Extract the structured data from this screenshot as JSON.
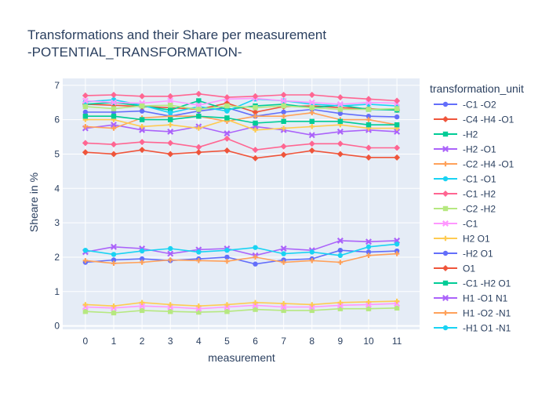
{
  "chart_data": {
    "type": "line",
    "title_line1": "Transformations and their Share per measurement",
    "title_line2": "-POTENTIAL_TRANSFORMATION-",
    "xlabel": "measurement",
    "ylabel": "Sheare in %",
    "legend_title": "transformation_unit",
    "legend_placement": "right",
    "grid": true,
    "plot_bg": "#E5ECF6",
    "xlim": [
      -0.8,
      11.8
    ],
    "ylim": [
      -0.1,
      7.2
    ],
    "x": [
      0,
      1,
      2,
      3,
      4,
      5,
      6,
      7,
      8,
      9,
      10,
      11
    ],
    "x_ticks": [
      "0",
      "1",
      "2",
      "3",
      "4",
      "5",
      "6",
      "7",
      "8",
      "9",
      "10",
      "11"
    ],
    "y_ticks": [
      "0",
      "1",
      "2",
      "3",
      "4",
      "5",
      "6",
      "7"
    ],
    "series": [
      {
        "name": "-C1 -O2",
        "color": "#636EFA",
        "marker": "circle",
        "values": [
          6.22,
          6.22,
          6.25,
          6.1,
          6.25,
          6.35,
          6.1,
          6.22,
          6.3,
          6.18,
          6.1,
          6.08
        ]
      },
      {
        "name": "-C4 -H4 -O1",
        "color": "#EF553B",
        "marker": "diamond",
        "values": [
          6.45,
          6.42,
          6.38,
          6.35,
          6.3,
          6.48,
          6.22,
          6.38,
          6.4,
          6.35,
          6.32,
          6.28
        ]
      },
      {
        "name": "-H2",
        "color": "#00CC96",
        "marker": "square",
        "values": [
          6.45,
          6.5,
          6.4,
          6.28,
          6.55,
          6.3,
          6.4,
          6.45,
          6.35,
          6.42,
          6.3,
          6.28
        ]
      },
      {
        "name": "-H2 -O1",
        "color": "#AB63FA",
        "marker": "x",
        "values": [
          5.75,
          5.85,
          5.7,
          5.65,
          5.8,
          5.6,
          5.8,
          5.7,
          5.55,
          5.65,
          5.7,
          5.65
        ]
      },
      {
        "name": "-C2 -H4 -O1",
        "color": "#FFA15A",
        "marker": "cross",
        "values": [
          5.8,
          5.75,
          6.05,
          6.1,
          6.1,
          5.95,
          6.1,
          6.1,
          6.2,
          6.0,
          6.0,
          5.85
        ]
      },
      {
        "name": "-C1 -O1",
        "color": "#19D3F3",
        "marker": "circle",
        "values": [
          6.52,
          6.58,
          6.42,
          6.2,
          6.38,
          6.25,
          6.6,
          6.55,
          6.45,
          6.4,
          6.45,
          6.4
        ]
      },
      {
        "name": "-C1 -H2",
        "color": "#FF6692",
        "marker": "diamond",
        "values": [
          5.32,
          5.28,
          5.35,
          5.32,
          5.2,
          5.45,
          5.12,
          5.22,
          5.3,
          5.3,
          5.18,
          5.18
        ]
      },
      {
        "name": "-C2 -H2",
        "color": "#B6E880",
        "marker": "square",
        "values": [
          0.42,
          0.38,
          0.45,
          0.42,
          0.4,
          0.42,
          0.48,
          0.45,
          0.45,
          0.5,
          0.5,
          0.52
        ]
      },
      {
        "name": "-C1",
        "color": "#FF97FF",
        "marker": "x",
        "values": [
          6.55,
          6.5,
          6.48,
          6.55,
          6.42,
          6.6,
          6.62,
          6.55,
          6.5,
          6.45,
          6.5,
          6.48
        ]
      },
      {
        "name": "H2 O1",
        "color": "#FECB52",
        "marker": "cross",
        "values": [
          6.0,
          6.0,
          5.8,
          5.85,
          5.75,
          6.0,
          5.7,
          5.75,
          5.8,
          5.85,
          5.75,
          5.75
        ]
      },
      {
        "name": "-H2 O1",
        "color": "#636EFA",
        "marker": "circle",
        "values": [
          1.85,
          1.92,
          1.95,
          1.9,
          1.95,
          2.0,
          1.8,
          1.92,
          1.95,
          2.2,
          2.15,
          2.18
        ]
      },
      {
        "name": "O1",
        "color": "#EF553B",
        "marker": "diamond",
        "values": [
          5.05,
          5.0,
          5.12,
          5.0,
          5.05,
          5.1,
          4.88,
          4.98,
          5.1,
          5.0,
          4.9,
          4.9
        ]
      },
      {
        "name": "-C1 -H2 O1",
        "color": "#00CC96",
        "marker": "square",
        "values": [
          6.1,
          6.1,
          6.0,
          6.0,
          6.1,
          6.05,
          5.9,
          5.95,
          5.95,
          5.95,
          5.85,
          5.85
        ]
      },
      {
        "name": "H1 -O1 N1",
        "color": "#AB63FA",
        "marker": "x",
        "values": [
          2.15,
          2.3,
          2.25,
          2.1,
          2.22,
          2.25,
          2.05,
          2.25,
          2.2,
          2.48,
          2.45,
          2.48
        ]
      },
      {
        "name": "H1 -O2 -N1",
        "color": "#FFA15A",
        "marker": "cross",
        "values": [
          1.9,
          1.82,
          1.85,
          1.92,
          1.9,
          1.88,
          2.0,
          1.85,
          1.9,
          1.85,
          2.05,
          2.1
        ]
      },
      {
        "name": "-H1 O1 -N1",
        "color": "#19D3F3",
        "marker": "circle",
        "values": [
          2.2,
          2.08,
          2.18,
          2.25,
          2.15,
          2.2,
          2.28,
          2.1,
          2.15,
          2.05,
          2.3,
          2.38
        ]
      },
      {
        "name": "",
        "color": "#FF6692",
        "marker": "diamond",
        "values": [
          6.7,
          6.72,
          6.68,
          6.68,
          6.75,
          6.65,
          6.68,
          6.72,
          6.72,
          6.65,
          6.6,
          6.55
        ]
      },
      {
        "name": "",
        "color": "#B6E880",
        "marker": "square",
        "values": [
          6.38,
          6.32,
          6.4,
          6.42,
          6.3,
          6.4,
          6.35,
          6.4,
          6.35,
          6.3,
          6.3,
          6.32
        ]
      },
      {
        "name": "",
        "color": "#FF97FF",
        "marker": "x",
        "values": [
          0.55,
          0.52,
          0.58,
          0.55,
          0.5,
          0.55,
          0.6,
          0.55,
          0.55,
          0.6,
          0.62,
          0.65
        ]
      },
      {
        "name": "",
        "color": "#FECB52",
        "marker": "cross",
        "values": [
          0.62,
          0.58,
          0.68,
          0.62,
          0.58,
          0.62,
          0.68,
          0.65,
          0.62,
          0.68,
          0.7,
          0.72
        ]
      }
    ]
  }
}
